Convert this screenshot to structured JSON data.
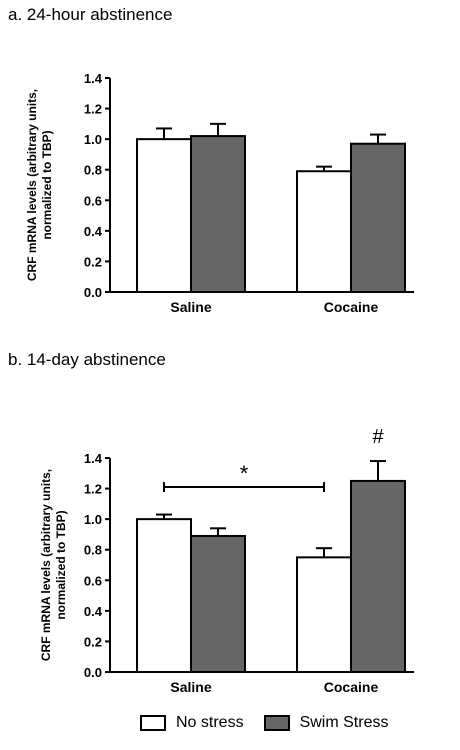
{
  "chart_data": [
    {
      "type": "bar",
      "title": "a. 24-hour abstinence",
      "ylabel": [
        "CRF mRNA levels (arbitrary units,",
        "normalized to TBP)"
      ],
      "ylim": [
        0,
        1.4
      ],
      "yticks": [
        "0.0",
        "0.2",
        "0.4",
        "0.6",
        "0.8",
        "1.0",
        "1.2",
        "1.4"
      ],
      "categories": [
        "Saline",
        "Cocaine"
      ],
      "series": [
        {
          "name": "No stress",
          "color": "#ffffff",
          "values": [
            1.0,
            0.79
          ],
          "errors": [
            0.07,
            0.03
          ]
        },
        {
          "name": "Swim Stress",
          "color": "#666666",
          "values": [
            1.02,
            0.97
          ],
          "errors": [
            0.08,
            0.06
          ]
        }
      ],
      "annotations": []
    },
    {
      "type": "bar",
      "title": "b. 14-day abstinence",
      "ylabel": [
        "CRF mRNA levels (arbitrary units,",
        "normalized to TBP)"
      ],
      "ylim": [
        0,
        1.4
      ],
      "yticks": [
        "0.0",
        "0.2",
        "0.4",
        "0.6",
        "0.8",
        "1.0",
        "1.2",
        "1.4"
      ],
      "categories": [
        "Saline",
        "Cocaine"
      ],
      "series": [
        {
          "name": "No stress",
          "color": "#ffffff",
          "values": [
            1.0,
            0.75
          ],
          "errors": [
            0.03,
            0.06
          ]
        },
        {
          "name": "Swim Stress",
          "color": "#666666",
          "values": [
            0.89,
            1.25
          ],
          "errors": [
            0.05,
            0.13
          ]
        }
      ],
      "annotations": [
        {
          "text": "*",
          "type": "bracket",
          "from": "Saline / No stress",
          "to": "Cocaine / No stress",
          "y": 1.21
        },
        {
          "text": "#",
          "type": "label",
          "target": "Cocaine / Swim Stress"
        }
      ]
    }
  ],
  "legend": [
    {
      "label": "No stress",
      "color": "#ffffff"
    },
    {
      "label": "Swim Stress",
      "color": "#666666"
    }
  ]
}
